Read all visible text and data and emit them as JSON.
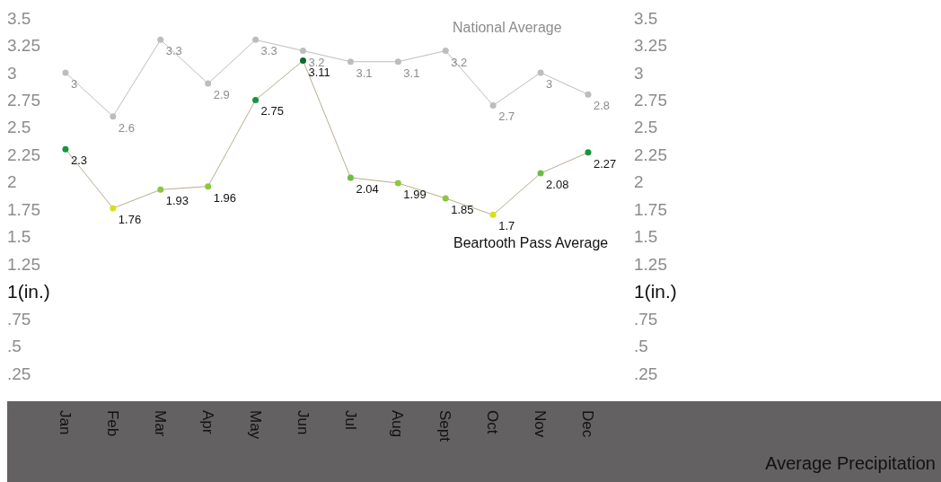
{
  "chart_data": {
    "type": "line",
    "title": "Average Precipitation",
    "categories": [
      "Jan",
      "Feb",
      "Mar",
      "Apr",
      "May",
      "Jun",
      "Jul",
      "Aug",
      "Sept",
      "Oct",
      "Nov",
      "Dec"
    ],
    "series": [
      {
        "name": "National Average",
        "color": "#bdbdbd",
        "values": [
          3,
          2.6,
          3.3,
          2.9,
          3.3,
          3.2,
          3.1,
          3.1,
          3.2,
          2.7,
          3,
          2.8
        ]
      },
      {
        "name": "Beartooth Pass Average",
        "color": "#b9ad8e",
        "colors": [
          "#14963c",
          "#d6df1e",
          "#8dc63f",
          "#8dc63f",
          "#14963c",
          "#0b6b30",
          "#6cbd45",
          "#8dc63f",
          "#8dc63f",
          "#d6df1e",
          "#6cbd45",
          "#14963c"
        ],
        "values": [
          2.3,
          1.76,
          1.93,
          1.96,
          2.75,
          3.11,
          2.04,
          1.99,
          1.85,
          1.7,
          2.08,
          2.27
        ]
      }
    ],
    "ylim": [
      0.25,
      3.5
    ],
    "yticks": [
      {
        "value": 0.25,
        "label": ".25"
      },
      {
        "value": 0.5,
        "label": ".5"
      },
      {
        "value": 0.75,
        "label": ".75"
      },
      {
        "value": 1,
        "label": "1(in.)"
      },
      1.25,
      1.5,
      1.75,
      2,
      2.25,
      2.5,
      2.75,
      3,
      3.25,
      3.5
    ],
    "y2lim": [
      0.25,
      3.5
    ],
    "y2ticks": [
      {
        "value": 0.25,
        "label": ".25"
      },
      {
        "value": 0.5,
        "label": ".5"
      },
      {
        "value": 0.75,
        "label": ".75"
      },
      {
        "value": 1,
        "label": "1(in.)"
      },
      1.25,
      1.5,
      1.75,
      2,
      2.25,
      2.5,
      2.75,
      3,
      3.25,
      3.5
    ],
    "data_labels": true,
    "marker": "circle",
    "line_style": "solid"
  }
}
